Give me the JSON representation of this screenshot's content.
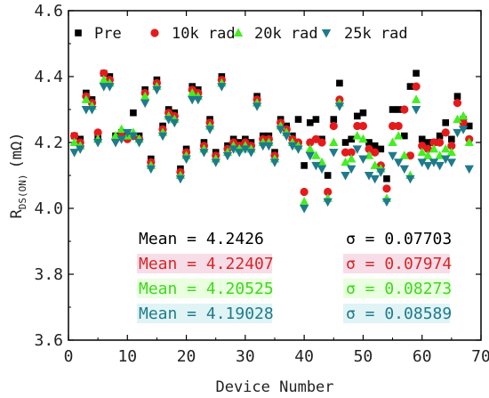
{
  "chart_data": {
    "type": "scatter",
    "xlabel": "Device Number",
    "ylabel": "R",
    "ylabel_sub": "DS(ON)",
    "ylabel_unit": "(mΩ)",
    "xlim": [
      0,
      70
    ],
    "ylim": [
      3.6,
      4.6
    ],
    "x_ticks": [
      "0",
      "10",
      "20",
      "30",
      "40",
      "50",
      "60",
      "70"
    ],
    "y_ticks": [
      "3.6",
      "3.8",
      "4.0",
      "4.2",
      "4.4",
      "4.6"
    ],
    "legend": {
      "placement": "top"
    },
    "series": [
      {
        "name": "Pre",
        "marker": "square",
        "color": "#000000",
        "stats_mean": "Mean = 4.2426",
        "stats_sigma": "σ = 0.07703",
        "stats_color": "#000000",
        "stats_bg": "#ffffff",
        "x": [
          1,
          2,
          3,
          4,
          5,
          6,
          7,
          8,
          9,
          10,
          11,
          12,
          13,
          14,
          15,
          16,
          17,
          18,
          19,
          20,
          21,
          22,
          23,
          24,
          25,
          26,
          27,
          28,
          29,
          30,
          31,
          32,
          33,
          34,
          35,
          36,
          37,
          38,
          39,
          40,
          41,
          42,
          43,
          44,
          45,
          46,
          47,
          48,
          49,
          50,
          51,
          52,
          53,
          54,
          55,
          56,
          57,
          58,
          59,
          60,
          61,
          62,
          63,
          64,
          65,
          66,
          67,
          68
        ],
        "y": [
          4.22,
          4.21,
          4.35,
          4.33,
          4.22,
          4.41,
          4.4,
          4.22,
          4.23,
          4.22,
          4.29,
          4.22,
          4.36,
          4.15,
          4.39,
          4.25,
          4.3,
          4.29,
          4.12,
          4.18,
          4.37,
          4.36,
          4.2,
          4.27,
          4.17,
          4.4,
          4.19,
          4.21,
          4.2,
          4.21,
          4.2,
          4.34,
          4.22,
          4.22,
          4.17,
          4.27,
          4.25,
          4.22,
          4.27,
          4.13,
          4.26,
          4.27,
          4.21,
          4.1,
          4.27,
          4.38,
          4.2,
          4.21,
          4.28,
          4.29,
          4.2,
          4.19,
          4.18,
          4.09,
          4.3,
          4.3,
          4.22,
          4.37,
          4.41,
          4.21,
          4.2,
          4.2,
          4.22,
          4.26,
          4.21,
          4.34,
          4.27,
          4.25
        ]
      },
      {
        "name": "10k rad",
        "marker": "circle",
        "color": "#e41a1c",
        "stats_mean": "Mean = 4.22407",
        "stats_sigma": "σ = 0.07974",
        "stats_color": "#d62728",
        "stats_bg": "#f7dde8",
        "x": [
          1,
          2,
          3,
          4,
          5,
          6,
          7,
          8,
          9,
          10,
          11,
          12,
          13,
          14,
          15,
          16,
          17,
          18,
          19,
          20,
          21,
          22,
          23,
          24,
          25,
          26,
          27,
          28,
          29,
          30,
          31,
          32,
          33,
          34,
          35,
          36,
          37,
          38,
          39,
          40,
          41,
          42,
          43,
          44,
          45,
          46,
          47,
          48,
          49,
          50,
          51,
          52,
          53,
          54,
          55,
          56,
          57,
          58,
          59,
          60,
          61,
          62,
          63,
          64,
          65,
          66,
          67,
          68
        ],
        "y": [
          4.22,
          4.2,
          4.34,
          4.32,
          4.23,
          4.41,
          4.39,
          4.21,
          4.22,
          4.21,
          4.22,
          4.21,
          4.35,
          4.14,
          4.38,
          4.24,
          4.29,
          4.28,
          4.11,
          4.17,
          4.36,
          4.35,
          4.19,
          4.26,
          4.16,
          4.39,
          4.18,
          4.2,
          4.19,
          4.2,
          4.19,
          4.33,
          4.21,
          4.21,
          4.16,
          4.26,
          4.24,
          4.21,
          4.2,
          4.05,
          4.2,
          4.21,
          4.2,
          4.05,
          4.25,
          4.33,
          4.17,
          4.17,
          4.25,
          4.25,
          4.18,
          4.17,
          4.13,
          4.06,
          4.25,
          4.25,
          4.3,
          4.16,
          4.37,
          4.19,
          4.18,
          4.2,
          4.2,
          4.23,
          4.19,
          4.32,
          4.26,
          4.21
        ]
      },
      {
        "name": "20k rad",
        "marker": "triangle-up",
        "color": "#44ee22",
        "stats_mean": "Mean = 4.20525",
        "stats_sigma": "σ = 0.08273",
        "stats_color": "#3fd81c",
        "stats_bg": "#e9ffe0",
        "x": [
          1,
          2,
          3,
          4,
          5,
          6,
          7,
          8,
          9,
          10,
          11,
          12,
          13,
          14,
          15,
          16,
          17,
          18,
          19,
          20,
          21,
          22,
          23,
          24,
          25,
          26,
          27,
          28,
          29,
          30,
          31,
          32,
          33,
          34,
          35,
          36,
          37,
          38,
          39,
          40,
          41,
          42,
          43,
          44,
          45,
          46,
          47,
          48,
          49,
          50,
          51,
          52,
          53,
          54,
          55,
          56,
          57,
          58,
          59,
          60,
          61,
          62,
          63,
          64,
          65,
          66,
          67,
          68
        ],
        "y": [
          4.2,
          4.19,
          4.33,
          4.31,
          4.21,
          4.39,
          4.38,
          4.22,
          4.24,
          4.22,
          4.23,
          4.21,
          4.34,
          4.13,
          4.37,
          4.23,
          4.28,
          4.27,
          4.1,
          4.16,
          4.35,
          4.34,
          4.18,
          4.25,
          4.15,
          4.38,
          4.17,
          4.19,
          4.18,
          4.19,
          4.18,
          4.32,
          4.2,
          4.2,
          4.15,
          4.25,
          4.23,
          4.2,
          4.19,
          4.02,
          4.18,
          4.16,
          4.14,
          4.03,
          4.2,
          4.32,
          4.14,
          4.15,
          4.22,
          4.21,
          4.16,
          4.13,
          4.12,
          4.03,
          4.2,
          4.22,
          4.16,
          4.1,
          4.33,
          4.17,
          4.16,
          4.18,
          4.16,
          4.18,
          4.17,
          4.27,
          4.28,
          4.2
        ]
      },
      {
        "name": "25k rad",
        "marker": "triangle-down",
        "color": "#1f7a8c",
        "stats_mean": "Mean = 4.19028",
        "stats_sigma": "σ = 0.08589",
        "stats_color": "#207a8a",
        "stats_bg": "#e0f4f6",
        "x": [
          1,
          2,
          3,
          4,
          5,
          6,
          7,
          8,
          9,
          10,
          11,
          12,
          13,
          14,
          15,
          16,
          17,
          18,
          19,
          20,
          21,
          22,
          23,
          24,
          25,
          26,
          27,
          28,
          29,
          30,
          31,
          32,
          33,
          34,
          35,
          36,
          37,
          38,
          39,
          40,
          41,
          42,
          43,
          44,
          45,
          46,
          47,
          48,
          49,
          50,
          51,
          52,
          53,
          54,
          55,
          56,
          57,
          58,
          59,
          60,
          61,
          62,
          63,
          64,
          65,
          66,
          67,
          68
        ],
        "y": [
          4.17,
          4.18,
          4.3,
          4.3,
          4.2,
          4.37,
          4.37,
          4.2,
          4.21,
          4.23,
          4.22,
          4.2,
          4.32,
          4.12,
          4.36,
          4.22,
          4.27,
          4.26,
          4.09,
          4.15,
          4.33,
          4.33,
          4.17,
          4.24,
          4.14,
          4.37,
          4.16,
          4.18,
          4.17,
          4.18,
          4.17,
          4.31,
          4.19,
          4.19,
          4.14,
          4.24,
          4.22,
          4.19,
          4.18,
          4.0,
          4.16,
          4.13,
          4.12,
          4.02,
          4.17,
          4.31,
          4.1,
          4.12,
          4.18,
          4.15,
          4.1,
          4.09,
          4.11,
          4.02,
          4.16,
          4.14,
          4.12,
          4.09,
          4.3,
          4.14,
          4.13,
          4.14,
          4.13,
          4.15,
          4.14,
          4.23,
          4.24,
          4.12
        ]
      }
    ]
  }
}
